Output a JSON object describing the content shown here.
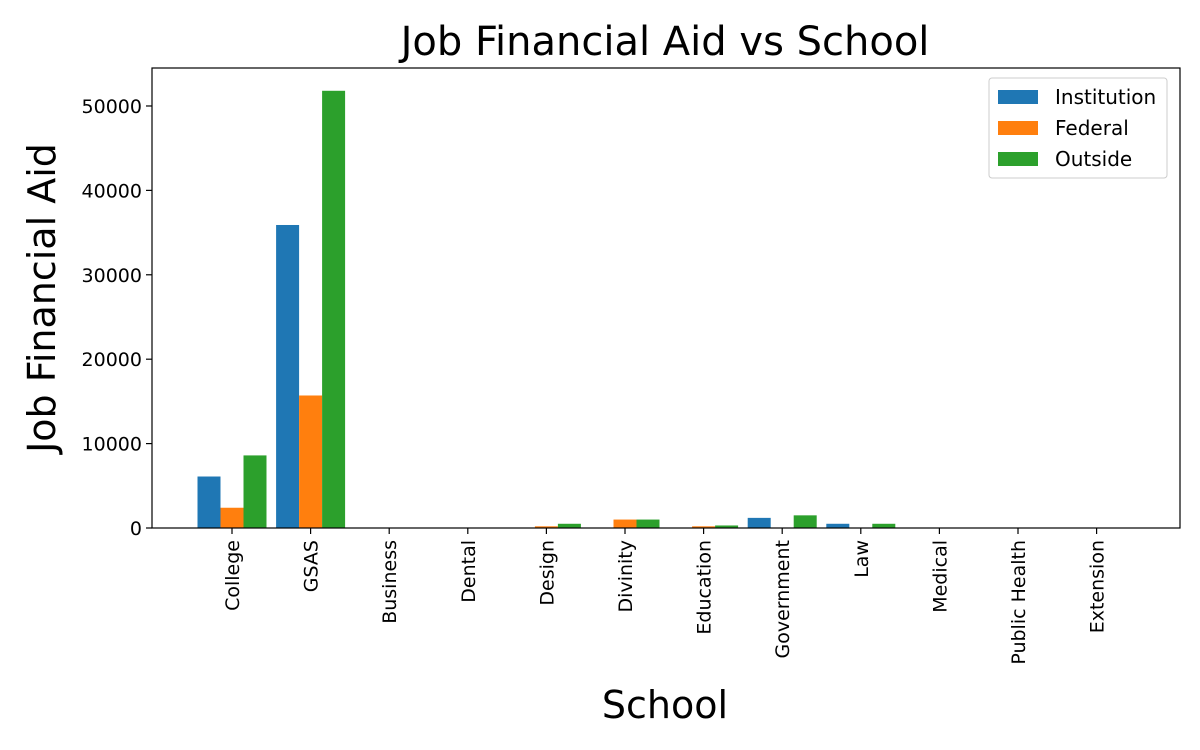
{
  "chart_data": {
    "type": "bar",
    "title": "Job Financial Aid vs School",
    "xlabel": "School",
    "ylabel": "Job Financial Aid",
    "categories": [
      "College",
      "GSAS",
      "Business",
      "Dental",
      "Design",
      "Divinity",
      "Education",
      "Government",
      "Law",
      "Medical",
      "Public Health",
      "Extension"
    ],
    "series": [
      {
        "name": "Institution",
        "color": "#1f77b4",
        "values": [
          6100,
          35900,
          0,
          0,
          0,
          0,
          0,
          1200,
          500,
          0,
          0,
          0
        ]
      },
      {
        "name": "Federal",
        "color": "#ff7f0e",
        "values": [
          2400,
          15700,
          0,
          0,
          200,
          1000,
          200,
          0,
          0,
          0,
          0,
          0
        ]
      },
      {
        "name": "Outside",
        "color": "#2ca02c",
        "values": [
          8600,
          51800,
          0,
          0,
          500,
          1000,
          300,
          1500,
          500,
          0,
          0,
          0
        ]
      }
    ],
    "yticks": [
      0,
      10000,
      20000,
      30000,
      40000,
      50000
    ],
    "ylim": [
      0,
      54500
    ],
    "grid": false,
    "legend_position": "top-right"
  }
}
